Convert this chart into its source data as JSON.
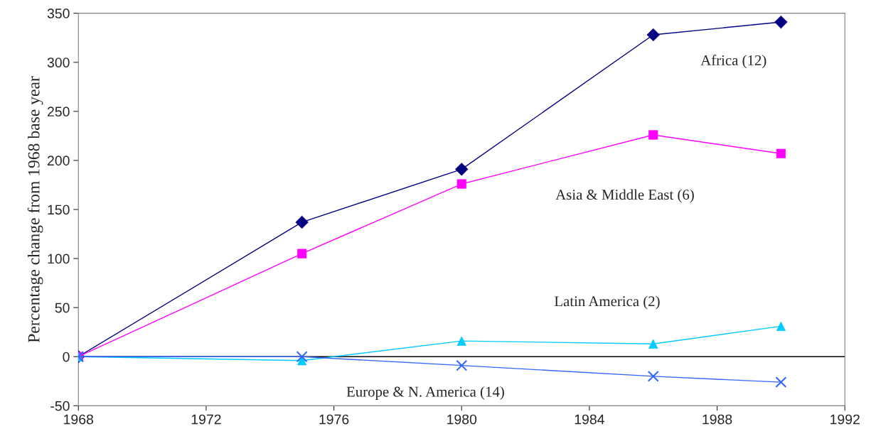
{
  "chart_data": {
    "type": "line",
    "ylabel": "Percentage change from 1968 base year",
    "x": [
      1968,
      1975,
      1980,
      1986,
      1990
    ],
    "xlim": [
      1968,
      1992
    ],
    "xticks": [
      1968,
      1972,
      1976,
      1980,
      1984,
      1988,
      1992
    ],
    "ylim": [
      -50,
      350
    ],
    "yticks": [
      -50,
      0,
      50,
      100,
      150,
      200,
      250,
      300,
      350
    ],
    "grid": false,
    "legend": false,
    "ref_lines": [
      {
        "axis": "y",
        "value": 0,
        "color": "#000000"
      }
    ],
    "series": [
      {
        "name": "Africa (12)",
        "color": "#000080",
        "marker": "diamond",
        "values": [
          0,
          137,
          191,
          328,
          341
        ]
      },
      {
        "name": "Asia & Middle East (6)",
        "color": "#ff00ff",
        "marker": "square",
        "values": [
          0,
          105,
          176,
          226,
          207
        ]
      },
      {
        "name": "Latin America (2)",
        "color": "#00ccff",
        "marker": "triangle",
        "values": [
          0,
          -4,
          16,
          13,
          31
        ]
      },
      {
        "name": "Europe & N. America (14)",
        "color": "#3366ff",
        "marker": "cross",
        "values": [
          0,
          0,
          -9,
          -20,
          -26
        ]
      }
    ]
  }
}
